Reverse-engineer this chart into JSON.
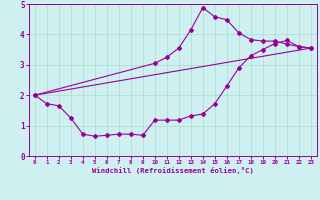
{
  "xlabel": "Windchill (Refroidissement éolien,°C)",
  "bg_color": "#cef0f0",
  "line_color": "#990099",
  "grid_color": "#aaddcc",
  "xlim": [
    -0.5,
    23.5
  ],
  "ylim": [
    0,
    5
  ],
  "xticks": [
    0,
    1,
    2,
    3,
    4,
    5,
    6,
    7,
    8,
    9,
    10,
    11,
    12,
    13,
    14,
    15,
    16,
    17,
    18,
    19,
    20,
    21,
    22,
    23
  ],
  "yticks": [
    0,
    1,
    2,
    3,
    4,
    5
  ],
  "line1_x": [
    0,
    1,
    2,
    3,
    4,
    5,
    6,
    7,
    8,
    9,
    10,
    11,
    12,
    13,
    14,
    15,
    16,
    17,
    18,
    19,
    20,
    21,
    22,
    23
  ],
  "line1_y": [
    2.0,
    1.72,
    1.65,
    1.25,
    0.72,
    0.65,
    0.68,
    0.72,
    0.72,
    0.68,
    1.18,
    1.18,
    1.18,
    1.32,
    1.38,
    1.72,
    2.3,
    2.9,
    3.3,
    3.5,
    3.7,
    3.8,
    3.6,
    3.55
  ],
  "line2_x": [
    0,
    23
  ],
  "line2_y": [
    2.0,
    3.55
  ],
  "line3_x": [
    0,
    10,
    11,
    12,
    13,
    14,
    15,
    16,
    17,
    18,
    19,
    20,
    21,
    22,
    23
  ],
  "line3_y": [
    2.0,
    3.05,
    3.25,
    3.55,
    4.15,
    4.88,
    4.58,
    4.48,
    4.05,
    3.83,
    3.78,
    3.78,
    3.68,
    3.6,
    3.55
  ]
}
